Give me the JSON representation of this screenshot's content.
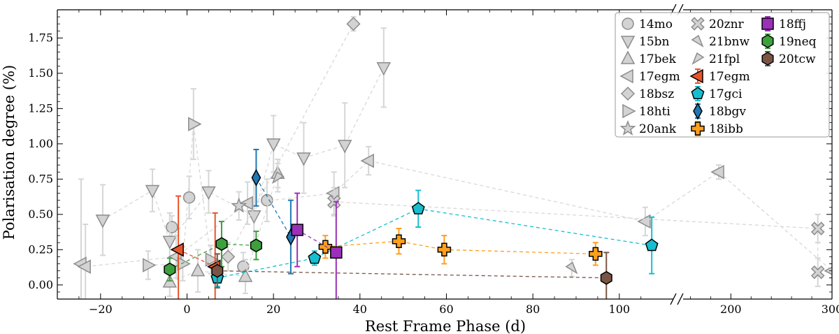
{
  "chart_data": {
    "type": "scatter",
    "xlabel": "Rest Frame Phase (d)",
    "ylabel": "Polarisation degree (%)",
    "ylim": [
      -0.1,
      1.95
    ],
    "grid": false,
    "legend_position": "top-right",
    "x_axis": {
      "segment1": {
        "range": [
          -30,
          112
        ],
        "ticks": [
          -20,
          0,
          20,
          40,
          60,
          80,
          100
        ],
        "tick_labels": [
          "−20",
          "0",
          "20",
          "40",
          "60",
          "80",
          "100"
        ]
      },
      "segment2": {
        "range": [
          150,
          300
        ],
        "ticks": [
          200,
          300
        ],
        "tick_labels": [
          "200",
          "300"
        ]
      }
    },
    "y_ticks": [
      0.0,
      0.25,
      0.5,
      0.75,
      1.0,
      1.25,
      1.5,
      1.75
    ],
    "y_tick_labels": [
      "0.00",
      "0.25",
      "0.50",
      "0.75",
      "1.00",
      "1.25",
      "1.50",
      "1.75"
    ],
    "series": [
      {
        "name": "14mo",
        "marker": "circle",
        "color": "#d3d3d3",
        "edge": "#8c8c8c",
        "line": false,
        "points": [
          [
            -3.5,
            0.41,
            0.08
          ],
          [
            0.5,
            0.62,
            0.15
          ],
          [
            13,
            0.13,
            0.1
          ],
          [
            18.5,
            0.6,
            0.15
          ]
        ]
      },
      {
        "name": "15bn",
        "marker": "triangle-down",
        "color": "#d3d3d3",
        "edge": "#8c8c8c",
        "line": true,
        "points": [
          [
            -19.5,
            0.46,
            0.25
          ],
          [
            -8,
            0.67,
            0.15
          ],
          [
            -4,
            0.31,
            0.2
          ],
          [
            5,
            0.66,
            0.15
          ],
          [
            15.5,
            0.49,
            0.25
          ],
          [
            20,
            1.0,
            0.2
          ],
          [
            27,
            0.9,
            0.25
          ],
          [
            36.5,
            0.99,
            0.3
          ],
          [
            45.5,
            1.54,
            0.28
          ]
        ]
      },
      {
        "name": "17bek",
        "marker": "triangle-up",
        "color": "#d3d3d3",
        "edge": "#8c8c8c",
        "line": true,
        "points": [
          [
            -4,
            0.02,
            0.1
          ],
          [
            2.5,
            0.1,
            0.15
          ],
          [
            13.5,
            0.06,
            0.12
          ],
          [
            21,
            0.79,
            0.1
          ]
        ]
      },
      {
        "name": "17egm",
        "marker": "triangle-left",
        "color": "#d3d3d3",
        "edge": "#8c8c8c",
        "line": true,
        "points": [
          [
            -24.5,
            0.15,
            0.6
          ],
          [
            -23.5,
            0.13,
            0.3
          ],
          [
            -2.5,
            0.2,
            0.15
          ],
          [
            14,
            0.58,
            0.15
          ],
          [
            34,
            0.65,
            0.15
          ],
          [
            42,
            0.88,
            0.1
          ],
          [
            106,
            0.45,
            0.1
          ],
          [
            188,
            0.8,
            0.05
          ],
          [
            300,
            0.1,
            0.05
          ]
        ]
      },
      {
        "name": "18bsz",
        "marker": "diamond",
        "color": "#d3d3d3",
        "edge": "#8c8c8c",
        "line": true,
        "points": [
          [
            9.5,
            0.2,
            0.1
          ],
          [
            38.5,
            1.85,
            0.05
          ]
        ]
      },
      {
        "name": "18hti",
        "marker": "triangle-right",
        "color": "#d3d3d3",
        "edge": "#8c8c8c",
        "line": true,
        "points": [
          [
            -9,
            0.14,
            0.1
          ],
          [
            -1,
            0.15,
            0.12
          ],
          [
            1.5,
            1.14,
            0.25
          ],
          [
            5.5,
            0.18,
            0.1
          ]
        ]
      },
      {
        "name": "20ank",
        "marker": "star",
        "color": "#d3d3d3",
        "edge": "#8c8c8c",
        "line": false,
        "points": [
          [
            12,
            0.56,
            0.1
          ]
        ]
      },
      {
        "name": "20znr",
        "marker": "x-cross",
        "color": "#d3d3d3",
        "edge": "#8c8c8c",
        "line": true,
        "points": [
          [
            34,
            0.59,
            0.1
          ],
          [
            286,
            0.4,
            0.1
          ],
          [
            286,
            0.09,
            0.1
          ]
        ]
      },
      {
        "name": "21bnw",
        "marker": "triangle-down-right",
        "color": "#d3d3d3",
        "edge": "#8c8c8c",
        "line": false,
        "points": [
          [
            89,
            0.12,
            0.06
          ]
        ]
      },
      {
        "name": "21fpl",
        "marker": "triangle-down-left",
        "color": "#d3d3d3",
        "edge": "#8c8c8c",
        "line": false,
        "points": [
          [
            21,
            0.76,
            0.1
          ]
        ]
      },
      {
        "name": "17egm",
        "marker": "triangle-left",
        "color": "#e8542a",
        "edge": "#000000",
        "line": true,
        "points": [
          [
            -2,
            0.25,
            0.38
          ],
          [
            6.5,
            0.13,
            0.38
          ]
        ]
      },
      {
        "name": "17gci",
        "marker": "pentagon",
        "color": "#17becf",
        "edge": "#000000",
        "line": true,
        "points": [
          [
            7,
            0.05,
            0.06
          ],
          [
            29.5,
            0.19,
            0.05
          ],
          [
            53.5,
            0.54,
            0.13
          ],
          [
            107.5,
            0.28,
            0.2
          ]
        ]
      },
      {
        "name": "18bgv",
        "marker": "thin-diamond",
        "color": "#1f77b4",
        "edge": "#000000",
        "line": true,
        "points": [
          [
            16,
            0.76,
            0.2
          ],
          [
            24,
            0.34,
            0.26
          ]
        ]
      },
      {
        "name": "18ibb",
        "marker": "plus",
        "color": "#ff9f1c",
        "edge": "#000000",
        "line": true,
        "points": [
          [
            32,
            0.27,
            0.08
          ],
          [
            49,
            0.31,
            0.09
          ],
          [
            59.5,
            0.25,
            0.1
          ],
          [
            94.5,
            0.22,
            0.08
          ]
        ]
      },
      {
        "name": "18ffj",
        "marker": "square",
        "color": "#9b30b8",
        "edge": "#000000",
        "line": true,
        "points": [
          [
            25.5,
            0.39,
            0.26
          ],
          [
            34.5,
            0.23,
            0.36
          ]
        ]
      },
      {
        "name": "19neq",
        "marker": "hexagon",
        "color": "#3ca03c",
        "edge": "#000000",
        "line": true,
        "points": [
          [
            -4,
            0.11,
            0.08
          ],
          [
            8,
            0.29,
            0.16
          ],
          [
            16,
            0.28,
            0.1
          ]
        ]
      },
      {
        "name": "20tcw",
        "marker": "hexagon",
        "color": "#7a5545",
        "edge": "#000000",
        "line": true,
        "points": [
          [
            7,
            0.1,
            0.12
          ],
          [
            97,
            0.05,
            0.18
          ]
        ]
      }
    ]
  }
}
